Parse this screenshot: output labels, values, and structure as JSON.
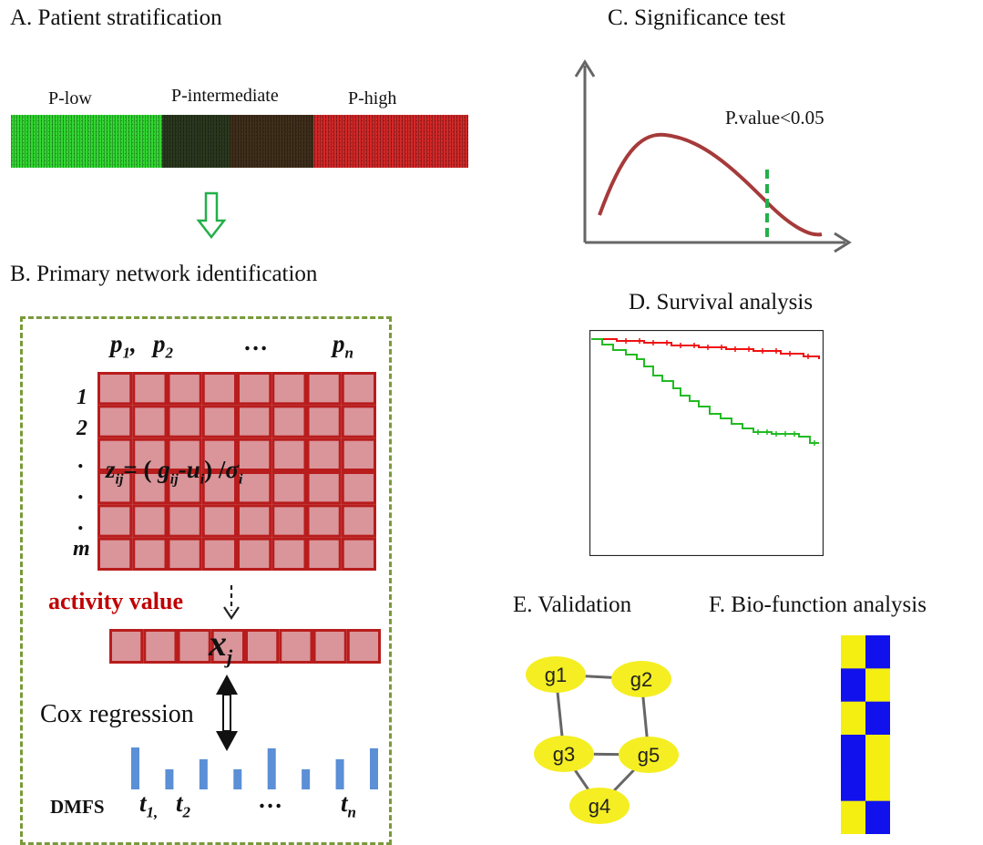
{
  "panels": {
    "a": {
      "title": "A. Patient stratification",
      "groups": [
        {
          "label": "P-low",
          "color": "#33ee33"
        },
        {
          "label": "P-intermediate",
          "color": "#333322"
        },
        {
          "label": "P-high",
          "color": "#dd2222"
        }
      ]
    },
    "b": {
      "title": "B. Primary network identification",
      "columns": {
        "first": "p",
        "first_sub": "1",
        "second": "p",
        "second_sub": "2",
        "ellipsis": "…",
        "last": "p",
        "last_sub": "n"
      },
      "rows": [
        "1",
        "2",
        ".",
        ".",
        ".",
        "m"
      ],
      "formula": {
        "z": "z",
        "z_sub": "ij",
        "eq": "= (",
        "g": "g",
        "g_sub": "ij",
        "minus": "-",
        "u": "u",
        "u_sub": "i",
        "close": ") /",
        "sigma": "σ",
        "sigma_sub": "i"
      },
      "activity_label": "activity value",
      "activity_symbol": "x",
      "activity_sub": "j",
      "cox_label": "Cox regression",
      "dmfs_label": "DMFS",
      "times": {
        "first": "t",
        "first_sub": "1,",
        "second": "t",
        "second_sub": "2",
        "ellipsis": "…",
        "last": "t",
        "last_sub": "n"
      },
      "bar_values": [
        1.0,
        0.48,
        0.72,
        0.48,
        0.98,
        0.48,
        0.72,
        0.98
      ],
      "colors": {
        "cell_fill": "#d9959a",
        "cell_border": "#b81c1c",
        "dashed_border": "#789a3a",
        "bars": "#5b8fd6",
        "activity_text": "#c00000"
      }
    },
    "c": {
      "title": "C. Significance test",
      "pvalue_label": "P.value<0.05",
      "colors": {
        "curve": "#a63a3a",
        "threshold": "#22b04a",
        "axes": "#666666"
      }
    },
    "d": {
      "title": "D. Survival analysis",
      "curves": [
        {
          "color": "#ee1111",
          "end_survival": 0.91
        },
        {
          "color": "#22bb22",
          "end_survival": 0.48
        }
      ]
    },
    "e": {
      "title": "E. Validation",
      "nodes": [
        "g1",
        "g2",
        "g3",
        "g5",
        "g4"
      ],
      "edges": [
        [
          "g1",
          "g2"
        ],
        [
          "g1",
          "g3"
        ],
        [
          "g2",
          "g5"
        ],
        [
          "g3",
          "g5"
        ],
        [
          "g3",
          "g4"
        ],
        [
          "g5",
          "g4"
        ]
      ],
      "node_color": "#f5ee22"
    },
    "f": {
      "title": "F. Bio-function analysis",
      "pattern": [
        [
          1,
          0
        ],
        [
          0,
          1
        ],
        [
          1,
          0
        ],
        [
          0,
          1
        ],
        [
          0,
          1
        ],
        [
          1,
          0
        ]
      ],
      "colors": [
        "#1111ee",
        "#f5ee11"
      ]
    }
  }
}
